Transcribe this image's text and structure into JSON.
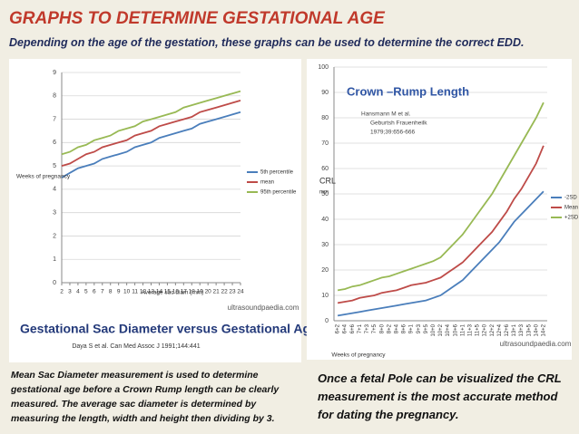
{
  "title": "GRAPHS TO DETERMINE GESTATIONAL AGE",
  "subtitle": "Depending on the age of the gestation, these graphs can be used to determine the correct EDD.",
  "chart_data": [
    {
      "type": "line",
      "title": "Gestational Sac Diameter  versus Gestational Age",
      "citation": "Daya S et al. Can Med Assoc J 1991;144:441",
      "watermark": "ultrasoundpaedia.com",
      "xlabel": "Average sac diam (mm)",
      "ylabel": "Weeks of pregnancy",
      "x": [
        2,
        3,
        4,
        5,
        6,
        7,
        8,
        9,
        10,
        11,
        12,
        13,
        14,
        15,
        16,
        17,
        18,
        19,
        20,
        21,
        22,
        23,
        24
      ],
      "xlim": [
        2,
        24
      ],
      "xticks": [
        2,
        3,
        4,
        5,
        6,
        7,
        8,
        9,
        10,
        11,
        12,
        13,
        14,
        15,
        16,
        17,
        18,
        19,
        20,
        21,
        22,
        23,
        24
      ],
      "ylim": [
        0,
        9
      ],
      "yticks": [
        0,
        1,
        2,
        3,
        4,
        5,
        6,
        7,
        8,
        9
      ],
      "grid": true,
      "legend": "right",
      "series": [
        {
          "name": "5th percentile",
          "color": "#4a7ebb",
          "values": [
            4.5,
            4.7,
            4.9,
            5.0,
            5.1,
            5.3,
            5.4,
            5.5,
            5.6,
            5.8,
            5.9,
            6.0,
            6.2,
            6.3,
            6.4,
            6.5,
            6.6,
            6.8,
            6.9,
            7.0,
            7.1,
            7.2,
            7.3
          ]
        },
        {
          "name": "mean",
          "color": "#be4b48",
          "values": [
            5.0,
            5.1,
            5.3,
            5.5,
            5.6,
            5.8,
            5.9,
            6.0,
            6.1,
            6.3,
            6.4,
            6.5,
            6.7,
            6.8,
            6.9,
            7.0,
            7.1,
            7.3,
            7.4,
            7.5,
            7.6,
            7.7,
            7.8
          ]
        },
        {
          "name": "95th percentile",
          "color": "#98b954",
          "values": [
            5.5,
            5.6,
            5.8,
            5.9,
            6.1,
            6.2,
            6.3,
            6.5,
            6.6,
            6.7,
            6.9,
            7.0,
            7.1,
            7.2,
            7.3,
            7.5,
            7.6,
            7.7,
            7.8,
            7.9,
            8.0,
            8.1,
            8.2
          ]
        }
      ]
    },
    {
      "type": "line",
      "title": "Crown –Rump Length",
      "citation": [
        "Hansmann M et al.",
        "Geburtsh Frauenheilk",
        "1979;39:656-666"
      ],
      "watermark": "ultrasoundpaedia.com",
      "xlabel": "Weeks of pregnancy",
      "ylabel": "CRL",
      "yunit": "mm",
      "categories": [
        "6+2",
        "6+4",
        "6+6",
        "7+1",
        "7+3",
        "7+5",
        "8+0",
        "8+2",
        "8+4",
        "8+6",
        "9+1",
        "9+3",
        "9+5",
        "10+0",
        "10+2",
        "10+4",
        "10+6",
        "11+1",
        "11+3",
        "11+5",
        "12+0",
        "12+2",
        "12+4",
        "12+6",
        "13+1",
        "13+3",
        "13+5",
        "14+0",
        "14+2"
      ],
      "ylim": [
        0,
        100
      ],
      "yticks": [
        0,
        10,
        20,
        30,
        40,
        50,
        60,
        70,
        80,
        90,
        100
      ],
      "grid": true,
      "legend": "right",
      "series": [
        {
          "name": "-2SD",
          "color": "#4a7ebb",
          "values": [
            2,
            2.5,
            3,
            3.5,
            4,
            4.5,
            5,
            5.5,
            6,
            6.5,
            7,
            7.5,
            8,
            9,
            10,
            12,
            14,
            16,
            19,
            22,
            25,
            28,
            31,
            35,
            39,
            42,
            45,
            48,
            51
          ]
        },
        {
          "name": "Mean",
          "color": "#be4b48",
          "values": [
            7,
            7.5,
            8,
            9,
            9.5,
            10,
            11,
            11.5,
            12,
            13,
            14,
            14.5,
            15,
            16,
            17,
            19,
            21,
            23,
            26,
            29,
            32,
            35,
            39,
            43,
            48,
            52,
            57,
            62,
            69
          ]
        },
        {
          "name": "+2SD",
          "color": "#98b954",
          "values": [
            12,
            12.5,
            13.5,
            14,
            15,
            16,
            17,
            17.5,
            18.5,
            19.5,
            20.5,
            21.5,
            22.5,
            23.5,
            25,
            28,
            31,
            34,
            38,
            42,
            46,
            50,
            55,
            60,
            65,
            70,
            75,
            80,
            86
          ]
        }
      ]
    }
  ],
  "captions": [
    "Mean Sac Diameter measurement is used to determine gestational age before a Crown Rump length can be clearly measured. The average sac  diameter is determined by measuring the length, width and height then dividing by 3.",
    "Once a fetal Pole can be visualized the CRL measurement is the most accurate method for dating the pregnancy."
  ]
}
